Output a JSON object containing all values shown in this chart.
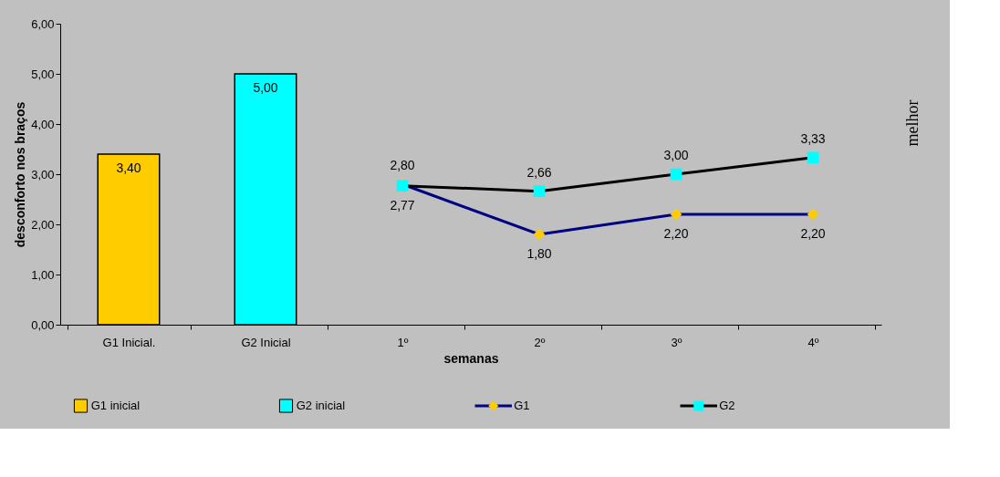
{
  "chart_data": {
    "type": "bar",
    "xlabel": "semanas",
    "ylabel": "desconforto nos braços",
    "categories": [
      "G1 Inicial.",
      "G2 Inicial",
      "1º",
      "2º",
      "3º",
      "4º"
    ],
    "series": [
      {
        "name": "G1 inicial",
        "color": "#ffcc00",
        "values": [
          3.4,
          null,
          null,
          null,
          null,
          null
        ],
        "value_labels": [
          "3,40",
          null,
          null,
          null,
          null,
          null
        ]
      },
      {
        "name": "G2 inicial",
        "color": "#00ffff",
        "values": [
          null,
          5.0,
          null,
          null,
          null,
          null
        ],
        "value_labels": [
          null,
          "5,00",
          null,
          null,
          null,
          null
        ]
      },
      {
        "name": "G1",
        "type": "line",
        "color": "#000080",
        "marker": "diamond",
        "colors": [
          null,
          null,
          "#ffcc00",
          "#ffcc00",
          "#ffcc00",
          "#ffcc00"
        ],
        "values": [
          null,
          null,
          2.8,
          1.8,
          2.2,
          2.2
        ],
        "value_labels": [
          null,
          null,
          "2,80",
          "1,80",
          "2,20",
          "2,20"
        ]
      },
      {
        "name": "G2",
        "type": "line",
        "color": "#000000",
        "marker": "square",
        "colors": [
          null,
          null,
          "#00ffff",
          "#00ffff",
          "#00ffff",
          "#00ffff"
        ],
        "values": [
          null,
          null,
          2.77,
          2.66,
          3.0,
          3.33
        ],
        "value_labels": [
          null,
          null,
          "2,77",
          "2,66",
          "3,00",
          "3,33"
        ]
      }
    ],
    "ylim": [
      0,
      6
    ],
    "yticks": [
      {
        "value": 0,
        "label": "0,00"
      },
      {
        "value": 1,
        "label": "1,00"
      },
      {
        "value": 2,
        "label": "2,00"
      },
      {
        "value": 3,
        "label": "3,00"
      },
      {
        "value": 4,
        "label": "4,00"
      },
      {
        "value": 5,
        "label": "5,00"
      },
      {
        "value": 6,
        "label": "6,00"
      }
    ],
    "grid": false,
    "legend": "bottom",
    "annotations": [
      "melhor"
    ]
  }
}
